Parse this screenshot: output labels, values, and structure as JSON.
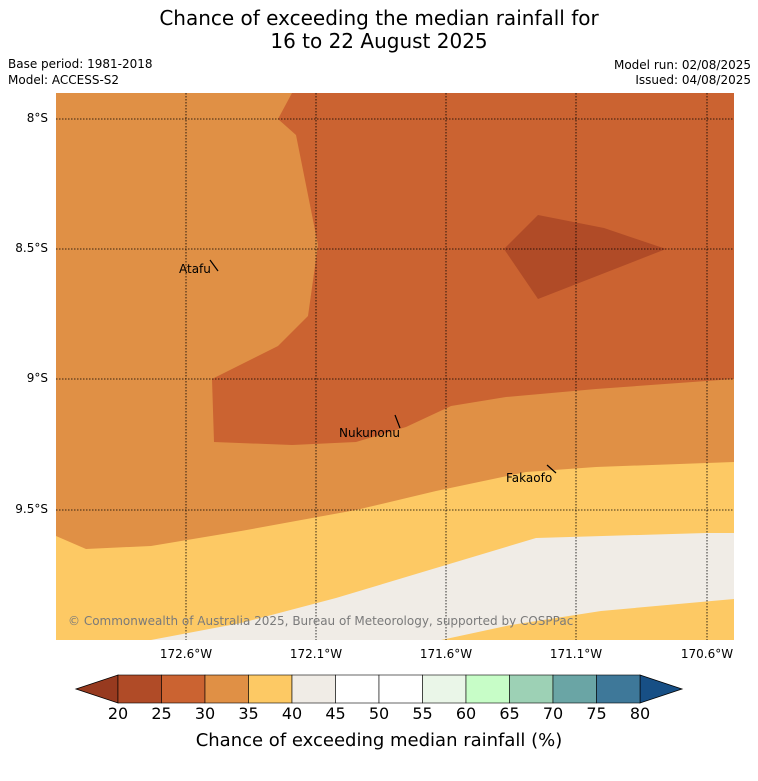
{
  "title": {
    "line1": "Chance of exceeding the median rainfall for",
    "line2": "16 to 22 August 2025"
  },
  "meta": {
    "base_period": "Base period: 1981-2018",
    "model": "Model: ACCESS-S2",
    "model_run": "Model run: 02/08/2025",
    "issued": "Issued: 04/08/2025"
  },
  "map": {
    "lat_labels": [
      "8°S",
      "8.5°S",
      "9°S",
      "9.5°S"
    ],
    "lon_labels": [
      "172.6°W",
      "172.1°W",
      "171.6°W",
      "171.1°W",
      "170.6°W"
    ],
    "places": [
      "Atafu",
      "Nukunonu",
      "Fakaofo"
    ],
    "credit": "© Commonwealth of Australia 2025, Bureau of Meteorology, supported by COSPPac",
    "region_colors": {
      "20-25": "#b04b27",
      "25-30": "#cb6331",
      "30-35": "#e09045",
      "35-40": "#fdc964",
      "40-45": "#f0ece6"
    }
  },
  "colorbar": {
    "ticks": [
      "20",
      "25",
      "30",
      "35",
      "40",
      "45",
      "50",
      "55",
      "60",
      "65",
      "70",
      "75",
      "80"
    ],
    "colors": [
      "#b04b27",
      "#cb6331",
      "#e09045",
      "#fdc964",
      "#f0ece6",
      "#ffffff",
      "#ffffff",
      "#eaf6e8",
      "#c7fdc7",
      "#9dd1b5",
      "#6aa5a5",
      "#3e7899"
    ],
    "low_extend_color": "#973a1f",
    "high_extend_color": "#174f85",
    "label": "Chance of exceeding median rainfall (%)"
  }
}
